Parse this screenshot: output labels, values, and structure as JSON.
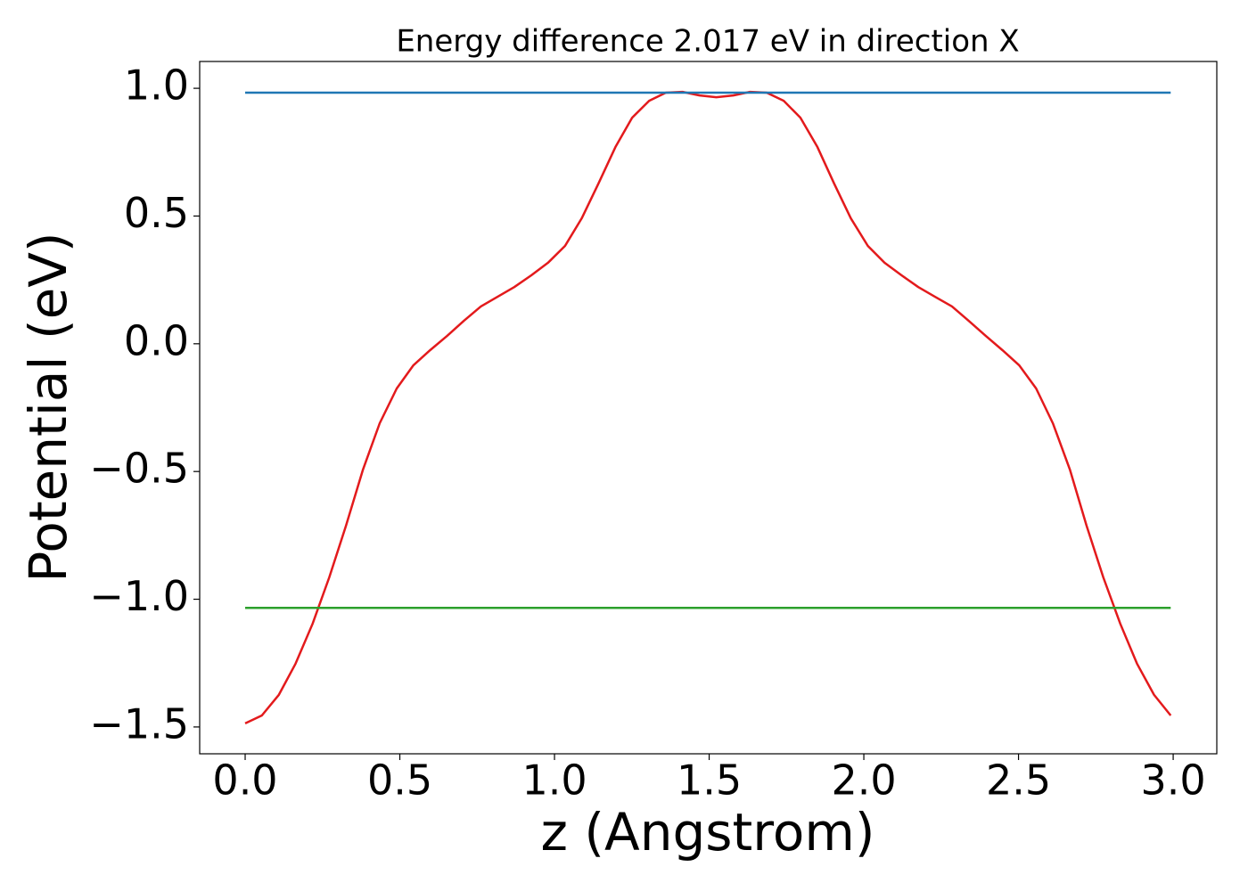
{
  "chart_data": {
    "type": "line",
    "title": "Energy difference 2.017 eV in direction X",
    "xlabel": "z (Angstrom)",
    "ylabel": "Potential (eV)",
    "xlim": [
      -0.147,
      3.141
    ],
    "ylim": [
      -1.605,
      1.105
    ],
    "xticks": [
      {
        "value": 0,
        "label": "0.0"
      },
      0.5,
      {
        "value": 1,
        "label": "1.0"
      },
      1.5,
      {
        "value": 2,
        "label": "2.0"
      },
      2.5,
      {
        "value": 3,
        "label": "3.0"
      }
    ],
    "yticks": [
      {
        "value": -1.5,
        "label": "−1.5"
      },
      {
        "value": -1,
        "label": "−1.0"
      },
      {
        "value": -0.5,
        "label": "−0.5"
      },
      {
        "value": 0,
        "label": "0.0"
      },
      0.5,
      {
        "value": 1,
        "label": "1.0"
      }
    ],
    "series": [
      {
        "color": "#e31a1c",
        "x": [
          0,
          0.054,
          0.109,
          0.163,
          0.218,
          0.272,
          0.326,
          0.381,
          0.435,
          0.49,
          0.544,
          0.598,
          0.653,
          0.707,
          0.762,
          0.816,
          0.87,
          0.925,
          0.979,
          1.034,
          1.088,
          1.142,
          1.197,
          1.251,
          1.306,
          1.36,
          1.414,
          1.469,
          1.523,
          1.578,
          1.632,
          1.686,
          1.741,
          1.795,
          1.85,
          1.904,
          1.958,
          2.013,
          2.067,
          2.122,
          2.176,
          2.23,
          2.285,
          2.339,
          2.394,
          2.448,
          2.502,
          2.557,
          2.611,
          2.666,
          2.72,
          2.774,
          2.829,
          2.883,
          2.938,
          2.992
        ],
        "values": [
          -1.486,
          -1.455,
          -1.374,
          -1.252,
          -1.096,
          -0.914,
          -0.712,
          -0.492,
          -0.311,
          -0.175,
          -0.084,
          -0.025,
          0.031,
          0.09,
          0.146,
          0.184,
          0.222,
          0.268,
          0.317,
          0.383,
          0.491,
          0.627,
          0.77,
          0.885,
          0.951,
          0.983,
          0.986,
          0.972,
          0.965,
          0.972,
          0.986,
          0.983,
          0.951,
          0.885,
          0.77,
          0.627,
          0.491,
          0.383,
          0.317,
          0.268,
          0.222,
          0.184,
          0.146,
          0.09,
          0.031,
          -0.025,
          -0.084,
          -0.175,
          -0.311,
          -0.492,
          -0.712,
          -0.914,
          -1.096,
          -1.252,
          -1.374,
          -1.455
        ]
      },
      {
        "color": "#1f77b4",
        "x": [
          0,
          2.992
        ],
        "values": [
          0.983,
          0.983
        ]
      },
      {
        "color": "#2ca02c",
        "x": [
          0,
          2.992
        ],
        "values": [
          -1.034,
          -1.034
        ]
      }
    ]
  }
}
